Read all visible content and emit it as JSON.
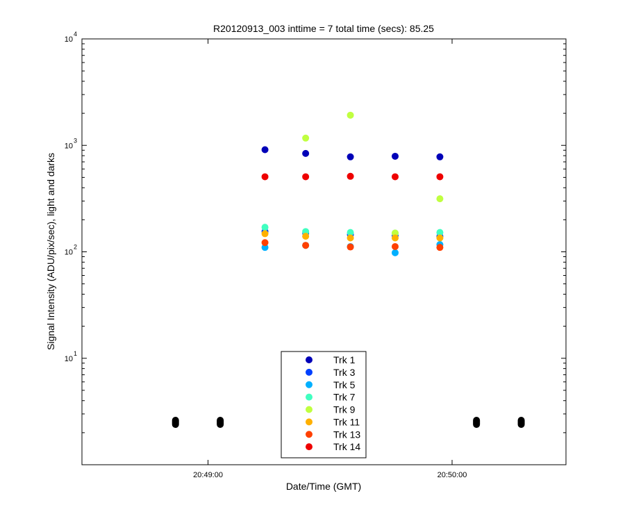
{
  "chart_data": {
    "type": "scatter",
    "title": "R20120913_003 inttime = 7 total time (secs): 85.25",
    "xlabel": "Date/Time (GMT)",
    "ylabel": "Signal Intensity (ADU/pix/sec), light and darks",
    "y_scale": "log",
    "ylim": [
      1,
      10000
    ],
    "xlim": [
      "20:48:29",
      "20:50:28"
    ],
    "x_ticks": [
      "20:49:00",
      "20:50:00"
    ],
    "y_ticks": [
      {
        "base": "10",
        "exp": "1"
      },
      {
        "base": "10",
        "exp": "2"
      },
      {
        "base": "10",
        "exp": "3"
      },
      {
        "base": "10",
        "exp": "4"
      }
    ],
    "grid": false,
    "legend_position": "bottom-center",
    "series": [
      {
        "name": "Trk 1",
        "color": "#0000b8",
        "x": [
          "20:49:14",
          "20:49:24",
          "20:49:35",
          "20:49:46",
          "20:49:57"
        ],
        "y": [
          910,
          840,
          780,
          790,
          780
        ]
      },
      {
        "name": "Trk 3",
        "color": "#0040ff",
        "x": [
          "20:49:14",
          "20:49:24",
          "20:49:35",
          "20:49:46",
          "20:49:57"
        ],
        "y": [
          155,
          150,
          145,
          142,
          140
        ]
      },
      {
        "name": "Trk 5",
        "color": "#00b0ff",
        "x": [
          "20:49:14",
          "20:49:24",
          "20:49:35",
          "20:49:46",
          "20:49:57"
        ],
        "y": [
          110,
          115,
          112,
          98,
          117
        ]
      },
      {
        "name": "Trk 7",
        "color": "#40ffc0",
        "x": [
          "20:49:14",
          "20:49:24",
          "20:49:35",
          "20:49:46",
          "20:49:57"
        ],
        "y": [
          170,
          155,
          152,
          150,
          152
        ]
      },
      {
        "name": "Trk 9",
        "color": "#c0ff40",
        "x": [
          "20:49:24",
          "20:49:35",
          "20:49:46",
          "20:49:57"
        ],
        "y": [
          1170,
          1920,
          150,
          315
        ]
      },
      {
        "name": "Trk 11",
        "color": "#ffb000",
        "x": [
          "20:49:14",
          "20:49:24",
          "20:49:35",
          "20:49:46",
          "20:49:57"
        ],
        "y": [
          148,
          140,
          135,
          135,
          135
        ]
      },
      {
        "name": "Trk 13",
        "color": "#ff4000",
        "x": [
          "20:49:14",
          "20:49:24",
          "20:49:35",
          "20:49:46",
          "20:49:57"
        ],
        "y": [
          122,
          115,
          111,
          112,
          110
        ]
      },
      {
        "name": "Trk 14",
        "color": "#ee0000",
        "x": [
          "20:49:14",
          "20:49:24",
          "20:49:35",
          "20:49:46",
          "20:49:57"
        ],
        "y": [
          507,
          507,
          512,
          507,
          507
        ]
      }
    ],
    "darks": {
      "color": "#000000",
      "x": [
        "20:48:52",
        "20:49:03",
        "20:50:06",
        "20:50:17"
      ],
      "y": [
        2.5,
        2.5,
        2.5,
        2.5
      ]
    }
  }
}
